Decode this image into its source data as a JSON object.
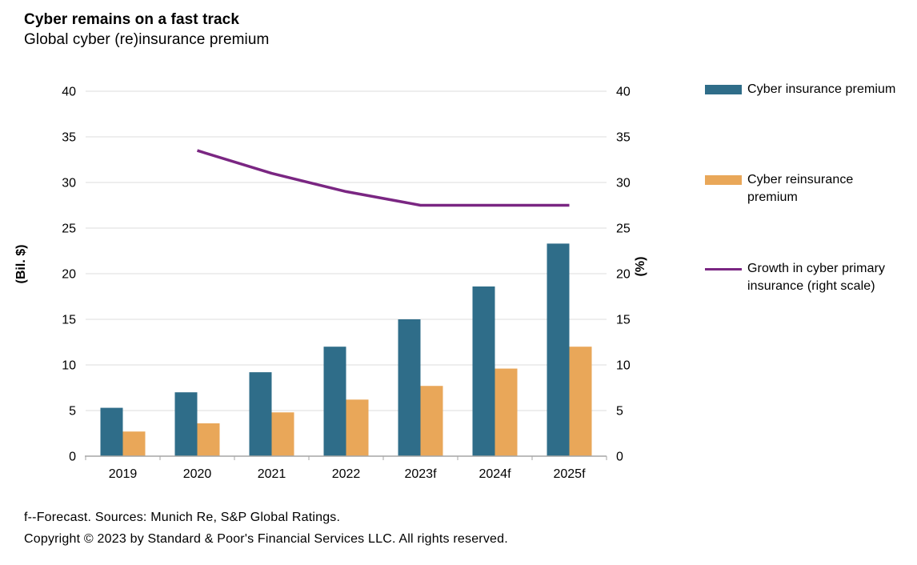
{
  "header": {
    "title": "Cyber remains on a fast track",
    "subtitle": "Global cyber (re)insurance premium"
  },
  "chart_data": {
    "type": "bar",
    "title": "Cyber remains on a fast track",
    "subtitle": "Global cyber (re)insurance premium",
    "categories": [
      "2019",
      "2020",
      "2021",
      "2022",
      "2023f",
      "2024f",
      "2025f"
    ],
    "series": [
      {
        "name": "Cyber insurance premium",
        "type": "bar",
        "axis": "left",
        "color": "#2f6d89",
        "values": [
          5.3,
          7.0,
          9.2,
          12.0,
          15.0,
          18.6,
          23.3
        ]
      },
      {
        "name": "Cyber reinsurance premium",
        "type": "bar",
        "axis": "left",
        "color": "#e9a759",
        "values": [
          2.7,
          3.6,
          4.8,
          6.2,
          7.7,
          9.6,
          12.0
        ]
      },
      {
        "name": "Growth in cyber primary insurance (right scale)",
        "type": "line",
        "axis": "right",
        "color": "#7a2682",
        "values": [
          null,
          33.5,
          31.0,
          29.0,
          27.5,
          27.5,
          27.5
        ]
      }
    ],
    "left_axis": {
      "label": "(Bil. $)",
      "min": 0,
      "max": 40,
      "step": 5,
      "tick_labels": [
        "0",
        "5",
        "10",
        "15",
        "20",
        "25",
        "30",
        "35",
        "40"
      ]
    },
    "right_axis": {
      "label": "(%)",
      "min": 0,
      "max": 40,
      "step": 5,
      "tick_labels": [
        "0",
        "5",
        "10",
        "15",
        "20",
        "25",
        "30",
        "35",
        "40"
      ]
    },
    "grid": true,
    "grid_color": "#dcdcdc",
    "axis_color": "#a6a6a6",
    "legend_position": "right"
  },
  "legend": {
    "items": [
      {
        "label": "Cyber insurance premium",
        "swatch": "bar"
      },
      {
        "label": "Cyber reinsurance premium",
        "swatch": "bar"
      },
      {
        "label": "Growth in cyber primary insurance (right scale)",
        "swatch": "line"
      }
    ]
  },
  "footer": {
    "note": "f--Forecast. Sources: Munich Re, S&P Global Ratings.",
    "copyright": "Copyright © 2023 by Standard & Poor's Financial Services LLC. All rights reserved."
  }
}
